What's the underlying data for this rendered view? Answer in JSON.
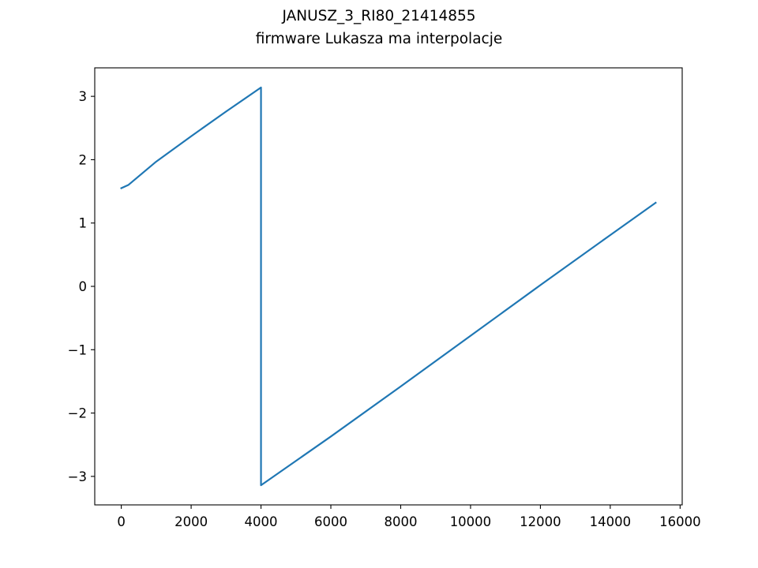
{
  "chart_data": {
    "type": "line",
    "title": "JANUSZ_3_RI80_21414855",
    "subtitle": "firmware Lukasza ma interpolacje",
    "xlabel": "",
    "ylabel": "",
    "xlim": [
      -760,
      16060
    ],
    "ylim": [
      -3.45,
      3.45
    ],
    "grid": false,
    "x_ticks": [
      0,
      2000,
      4000,
      6000,
      8000,
      10000,
      12000,
      14000,
      16000
    ],
    "x_tick_labels": [
      "0",
      "2000",
      "4000",
      "6000",
      "8000",
      "10000",
      "12000",
      "14000",
      "16000"
    ],
    "y_ticks": [
      -3,
      -2,
      -1,
      0,
      1,
      2,
      3
    ],
    "y_tick_labels": [
      "−3",
      "−2",
      "−1",
      "0",
      "1",
      "2",
      "3"
    ],
    "series": [
      {
        "color": "#1f77b4",
        "x": [
          0,
          200,
          1000,
          2000,
          3000,
          4000,
          4000,
          6000,
          8000,
          10000,
          11800,
          12000,
          14000,
          15300
        ],
        "y": [
          1.55,
          1.6,
          1.97,
          2.37,
          2.76,
          3.14,
          -3.14,
          -2.37,
          -1.58,
          -0.78,
          -0.06,
          0.02,
          0.81,
          1.32
        ]
      }
    ]
  }
}
